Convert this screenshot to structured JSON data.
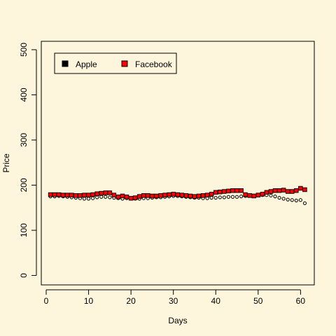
{
  "chart_data": {
    "type": "scatter",
    "xlabel": "Days",
    "ylabel": "Price",
    "xlim": [
      1,
      61
    ],
    "ylim": [
      0,
      500
    ],
    "xticks": [
      0,
      10,
      20,
      30,
      40,
      50,
      60
    ],
    "yticks": [
      0,
      100,
      200,
      300,
      400,
      500
    ],
    "legend_position": "top-left",
    "background": "#fdf6dc",
    "series": [
      {
        "name": "Apple",
        "color": "#000000",
        "marker": "circle",
        "x": [
          1,
          2,
          3,
          4,
          5,
          6,
          7,
          8,
          9,
          10,
          11,
          12,
          13,
          14,
          15,
          16,
          17,
          18,
          19,
          20,
          21,
          22,
          23,
          24,
          25,
          26,
          27,
          28,
          29,
          30,
          31,
          32,
          33,
          34,
          35,
          36,
          37,
          38,
          39,
          40,
          41,
          42,
          43,
          44,
          45,
          46,
          47,
          48,
          49,
          50,
          51,
          52,
          53,
          54,
          55,
          56,
          57,
          58,
          59,
          60,
          61
        ],
        "values": [
          175,
          175,
          176,
          175,
          174,
          173,
          172,
          171,
          170,
          170,
          171,
          173,
          174,
          174,
          173,
          172,
          171,
          170,
          171,
          170,
          170,
          170,
          171,
          171,
          172,
          173,
          173,
          174,
          175,
          176,
          176,
          175,
          174,
          173,
          172,
          172,
          171,
          171,
          172,
          172,
          173,
          173,
          174,
          174,
          174,
          175,
          176,
          177,
          177,
          178,
          178,
          178,
          177,
          175,
          172,
          170,
          168,
          167,
          166,
          167,
          160
        ]
      },
      {
        "name": "Facebook",
        "color": "#ff0000",
        "marker": "square",
        "x": [
          1,
          2,
          3,
          4,
          5,
          6,
          7,
          8,
          9,
          10,
          11,
          12,
          13,
          14,
          15,
          16,
          17,
          18,
          19,
          20,
          21,
          22,
          23,
          24,
          25,
          26,
          27,
          28,
          29,
          30,
          31,
          32,
          33,
          34,
          35,
          36,
          37,
          38,
          39,
          40,
          41,
          42,
          43,
          44,
          45,
          46,
          47,
          48,
          49,
          50,
          51,
          52,
          53,
          54,
          55,
          56,
          57,
          58,
          59,
          60,
          61
        ],
        "values": [
          179,
          179,
          179,
          178,
          178,
          178,
          177,
          177,
          178,
          178,
          179,
          181,
          182,
          183,
          183,
          178,
          174,
          176,
          174,
          171,
          172,
          175,
          177,
          177,
          176,
          176,
          177,
          178,
          179,
          180,
          179,
          178,
          177,
          176,
          175,
          176,
          177,
          178,
          180,
          184,
          185,
          186,
          187,
          188,
          188,
          188,
          179,
          177,
          176,
          178,
          180,
          184,
          186,
          188,
          188,
          189,
          186,
          186,
          188,
          193,
          190
        ]
      }
    ]
  }
}
